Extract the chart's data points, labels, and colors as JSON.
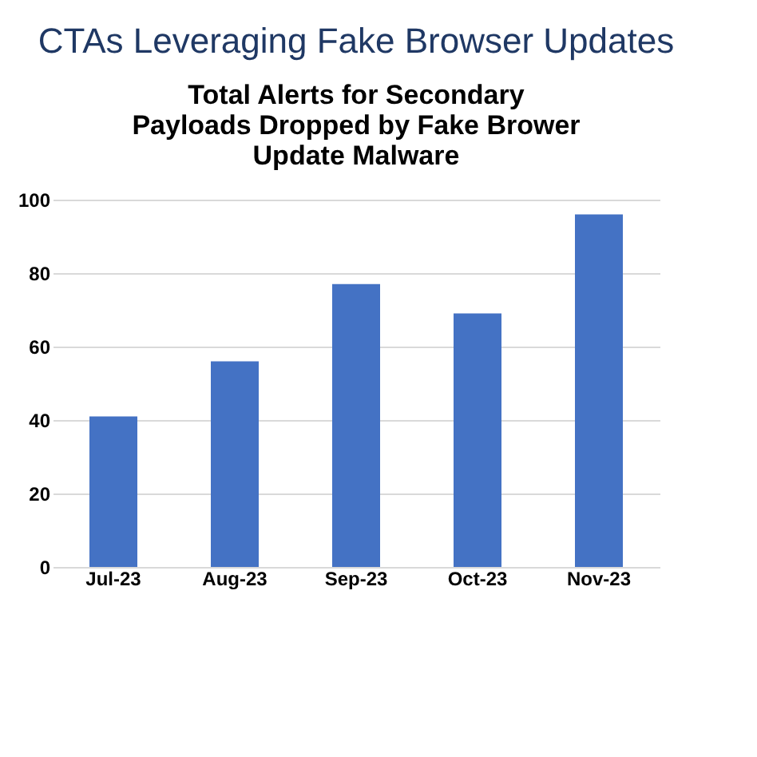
{
  "chart_data": {
    "type": "bar",
    "title": "CTAs Leveraging Fake Browser Updates",
    "subtitle": "Total Alerts for Secondary Payloads Dropped by Fake Brower Update Malware",
    "categories": [
      "Jul-23",
      "Aug-23",
      "Sep-23",
      "Oct-23",
      "Nov-23"
    ],
    "values": [
      41,
      56,
      77,
      69,
      96
    ],
    "color": "#4472c4",
    "ylim": [
      0,
      100
    ],
    "yticks": [
      0,
      20,
      40,
      60,
      80,
      100
    ],
    "grid": "y"
  }
}
